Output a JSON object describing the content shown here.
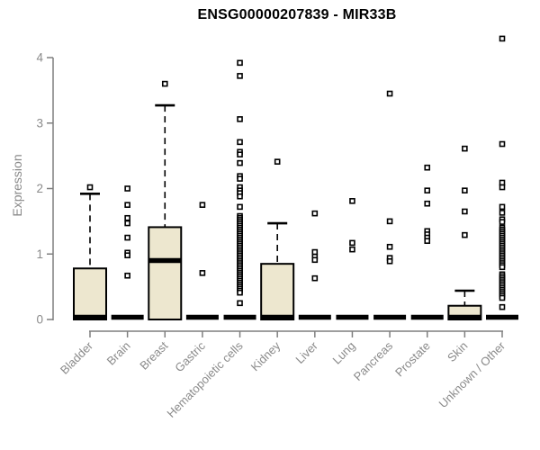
{
  "chart_data": {
    "type": "boxplot",
    "title": "ENSG00000207839 - MIR33B",
    "ylabel": "Expression",
    "xlabel": "",
    "ylim": [
      0,
      4.35
    ],
    "yticks": [
      0,
      1,
      2,
      3,
      4
    ],
    "grid": false,
    "legend": "none",
    "categories": [
      "Bladder",
      "Brain",
      "Breast",
      "Gastric",
      "Hematopoietic cells",
      "Kidney",
      "Liver",
      "Lung",
      "Pancreas",
      "Prostate",
      "Skin",
      "Unknown / Other"
    ],
    "series": [
      {
        "category": "Bladder",
        "q1": 0,
        "median": 0,
        "q3": 0.78,
        "whisker_low": 0,
        "whisker_high": 1.92,
        "outliers": [
          2.02
        ]
      },
      {
        "category": "Brain",
        "q1": 0,
        "median": 0,
        "q3": 0,
        "whisker_low": 0,
        "whisker_high": 0,
        "outliers": [
          2.0,
          1.75,
          1.55,
          1.47,
          1.25,
          1.02,
          0.98,
          0.67
        ]
      },
      {
        "category": "Breast",
        "q1": 0,
        "median": 0.9,
        "q3": 1.41,
        "whisker_low": 0,
        "whisker_high": 3.27,
        "outliers": [
          3.6
        ]
      },
      {
        "category": "Gastric",
        "q1": 0,
        "median": 0,
        "q3": 0,
        "whisker_low": 0,
        "whisker_high": 0,
        "outliers": [
          1.75,
          0.71
        ]
      },
      {
        "category": "Hematopoietic cells",
        "q1": 0,
        "median": 0,
        "q3": 0,
        "whisker_low": 0,
        "whisker_high": 0,
        "outliers": [
          3.92,
          3.72,
          3.06,
          2.71,
          2.56,
          2.52,
          2.39,
          2.19,
          2.15,
          2.02,
          1.97,
          1.93,
          1.88,
          1.72,
          1.58,
          1.55,
          1.52,
          1.49,
          1.46,
          1.43,
          1.4,
          1.37,
          1.34,
          1.31,
          1.28,
          1.25,
          1.22,
          1.19,
          1.16,
          1.13,
          1.1,
          1.07,
          1.04,
          1.01,
          0.98,
          0.95,
          0.92,
          0.89,
          0.86,
          0.83,
          0.8,
          0.77,
          0.74,
          0.71,
          0.68,
          0.65,
          0.62,
          0.59,
          0.56,
          0.53,
          0.5,
          0.47,
          0.44,
          0.41,
          0.25
        ]
      },
      {
        "category": "Kidney",
        "q1": 0,
        "median": 0,
        "q3": 0.85,
        "whisker_low": 0,
        "whisker_high": 1.47,
        "outliers": [
          2.41
        ]
      },
      {
        "category": "Liver",
        "q1": 0,
        "median": 0,
        "q3": 0,
        "whisker_low": 0,
        "whisker_high": 0,
        "outliers": [
          1.62,
          1.03,
          0.96,
          0.91,
          0.63
        ]
      },
      {
        "category": "Lung",
        "q1": 0,
        "median": 0,
        "q3": 0,
        "whisker_low": 0,
        "whisker_high": 0,
        "outliers": [
          1.81,
          1.17,
          1.07
        ]
      },
      {
        "category": "Pancreas",
        "q1": 0,
        "median": 0,
        "q3": 0,
        "whisker_low": 0,
        "whisker_high": 0,
        "outliers": [
          3.45,
          1.5,
          1.11,
          0.94,
          0.89
        ]
      },
      {
        "category": "Prostate",
        "q1": 0,
        "median": 0,
        "q3": 0,
        "whisker_low": 0,
        "whisker_high": 0,
        "outliers": [
          2.32,
          1.97,
          1.77,
          1.35,
          1.3,
          1.25,
          1.2
        ]
      },
      {
        "category": "Skin",
        "q1": 0,
        "median": 0,
        "q3": 0.21,
        "whisker_low": 0,
        "whisker_high": 0.44,
        "outliers": [
          2.61,
          1.97,
          1.65,
          1.29
        ]
      },
      {
        "category": "Unknown / Other",
        "q1": 0,
        "median": 0,
        "q3": 0,
        "whisker_low": 0,
        "whisker_high": 0,
        "outliers": [
          4.29,
          2.68,
          2.09,
          2.02,
          1.72,
          1.63,
          1.53,
          1.49,
          1.4,
          1.37,
          1.34,
          1.31,
          1.28,
          1.25,
          1.22,
          1.19,
          1.16,
          1.13,
          1.1,
          1.07,
          1.04,
          1.01,
          0.98,
          0.95,
          0.92,
          0.89,
          0.86,
          0.83,
          0.8,
          0.69,
          0.66,
          0.63,
          0.6,
          0.57,
          0.54,
          0.51,
          0.48,
          0.45,
          0.42,
          0.39,
          0.36,
          0.33,
          0.19
        ]
      }
    ],
    "colors": {
      "box_fill": "#EDE7CF",
      "box_border": "#000000",
      "median": "#000000",
      "whisker": "#000000",
      "outlier_stroke": "#000000",
      "outlier_fill": "#ffffff",
      "axis": "#7f7f7f",
      "tick_label": "#8a8a8a",
      "title": "#000000",
      "background": "#ffffff"
    }
  }
}
